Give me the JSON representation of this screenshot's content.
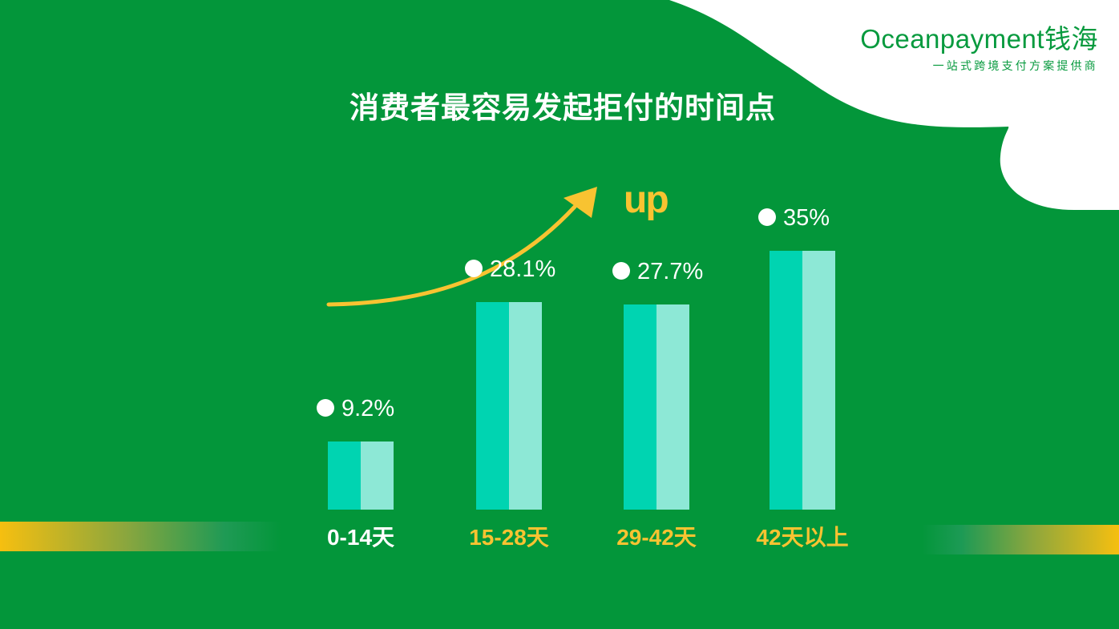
{
  "logo": {
    "brand": "Oceanpayment钱海",
    "tagline": "一站式跨境支付方案提供商"
  },
  "title": "消费者最容易发起拒付的时间点",
  "annotation": "up",
  "colors": {
    "background": "#03963a",
    "bar_dark": "#00d4b1",
    "bar_light": "#8de8d6",
    "accent_yellow": "#f8c331",
    "white": "#ffffff"
  },
  "chart_data": {
    "type": "bar",
    "title": "消费者最容易发起拒付的时间点",
    "categories": [
      "0-14天",
      "15-28天",
      "29-42天",
      "42天以上"
    ],
    "values": [
      9.2,
      28.1,
      27.7,
      35
    ],
    "value_labels": [
      "9.2%",
      "28.1%",
      "27.7%",
      "35%"
    ],
    "category_label_colors": [
      "#ffffff",
      "#f8c331",
      "#f8c331",
      "#f8c331"
    ],
    "unit": "%",
    "ylim": [
      0,
      40
    ],
    "grid": false,
    "legend": "none"
  }
}
